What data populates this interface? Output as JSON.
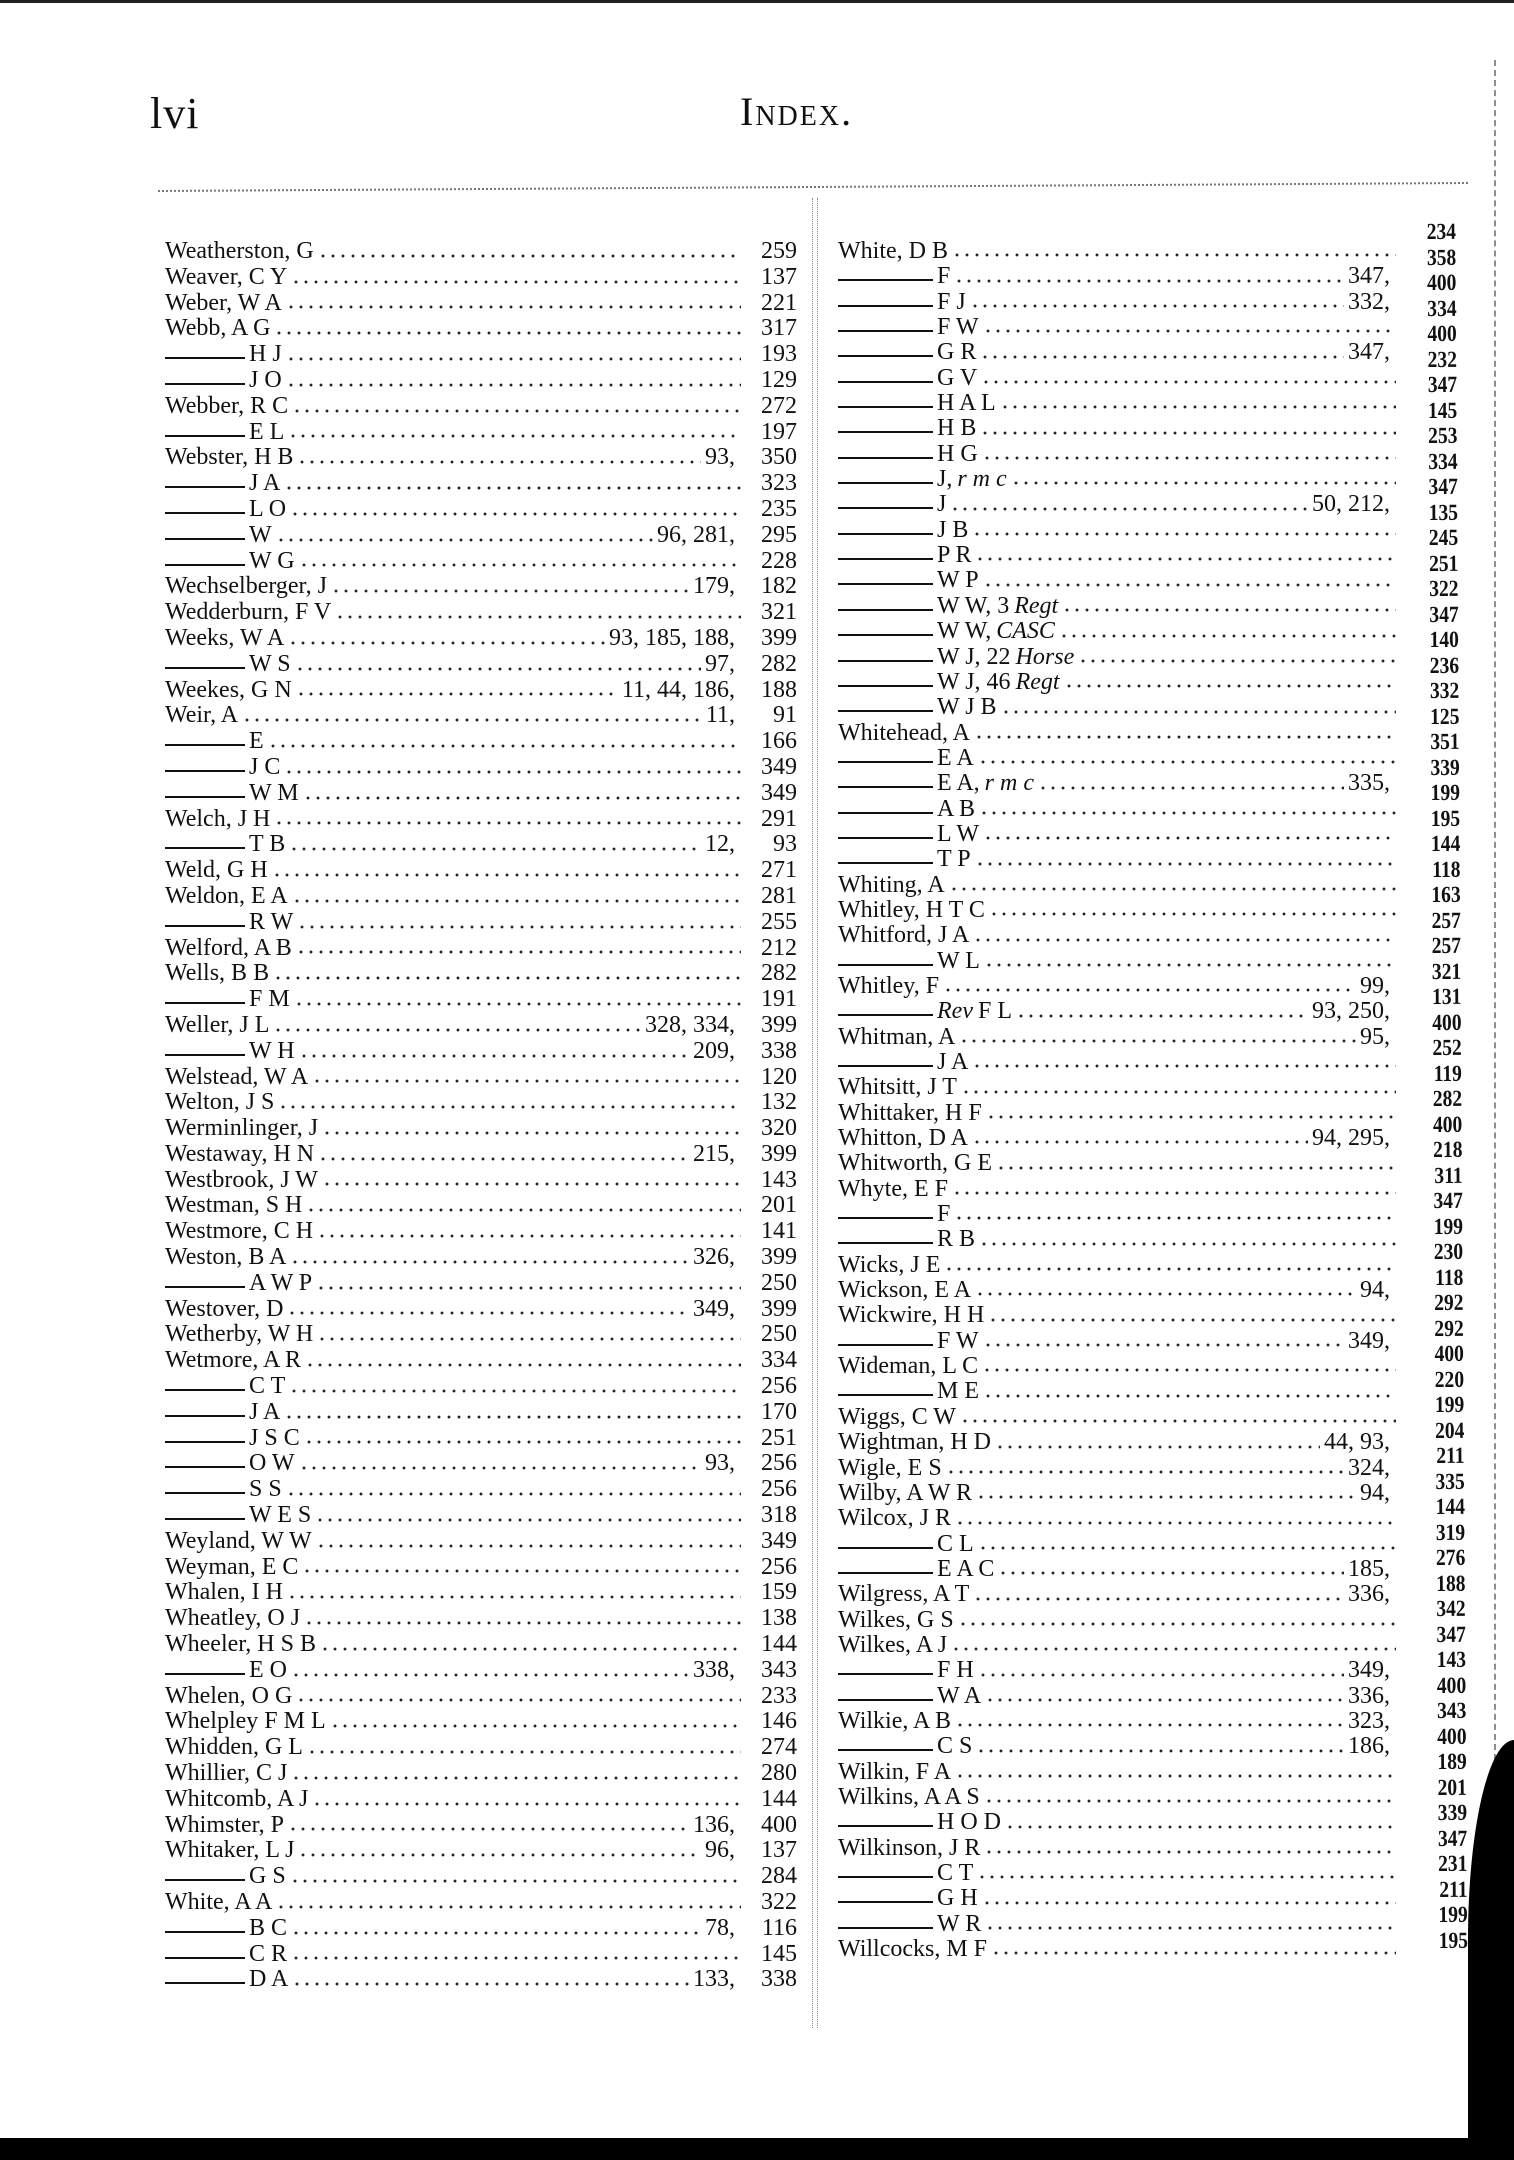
{
  "header": {
    "folio": "lvi",
    "title": "Index."
  },
  "left_column": [
    {
      "name": "Weatherston, G",
      "refs": "",
      "page": "259"
    },
    {
      "name": "Weaver, C Y",
      "refs": "",
      "page": "137"
    },
    {
      "name": "Weber, W A",
      "refs": "",
      "page": "221"
    },
    {
      "name": "Webb, A G",
      "refs": "",
      "page": "317"
    },
    {
      "sub": true,
      "name": "H J",
      "refs": "",
      "page": "193"
    },
    {
      "sub": true,
      "name": "J O",
      "refs": "",
      "page": "129"
    },
    {
      "name": "Webber, R C",
      "refs": "",
      "page": "272"
    },
    {
      "sub": true,
      "name": "E L",
      "refs": "",
      "page": "197"
    },
    {
      "name": "Webster, H B",
      "refs": "93,",
      "page": "350"
    },
    {
      "sub": true,
      "name": "J A",
      "refs": "",
      "page": "323"
    },
    {
      "sub": true,
      "name": "L O",
      "refs": "",
      "page": "235"
    },
    {
      "sub": true,
      "name": "W",
      "refs": "96, 281,",
      "page": "295"
    },
    {
      "sub": true,
      "name": "W G",
      "refs": "",
      "page": "228"
    },
    {
      "name": "Wechselberger, J",
      "refs": "179,",
      "page": "182"
    },
    {
      "name": "Wedderburn, F V",
      "refs": "",
      "page": "321"
    },
    {
      "name": "Weeks, W A",
      "refs": "93, 185, 188,",
      "page": "399"
    },
    {
      "sub": true,
      "name": "W S",
      "refs": "97,",
      "page": "282"
    },
    {
      "name": "Weekes, G N",
      "refs": "11, 44, 186,",
      "page": "188"
    },
    {
      "name": "Weir, A",
      "refs": "11,",
      "page": "91"
    },
    {
      "sub": true,
      "name": "E",
      "refs": "",
      "page": "166"
    },
    {
      "sub": true,
      "name": "J C",
      "refs": "",
      "page": "349"
    },
    {
      "sub": true,
      "name": "W M",
      "refs": "",
      "page": "349"
    },
    {
      "name": "Welch, J H",
      "refs": "",
      "page": "291"
    },
    {
      "sub": true,
      "name": "T B",
      "refs": "12,",
      "page": "93"
    },
    {
      "name": "Weld, G H",
      "refs": "",
      "page": "271"
    },
    {
      "name": "Weldon, E A",
      "refs": "",
      "page": "281"
    },
    {
      "sub": true,
      "name": "R W",
      "refs": "",
      "page": "255"
    },
    {
      "name": "Welford, A B",
      "refs": "",
      "page": "212"
    },
    {
      "name": "Wells, B B",
      "refs": "",
      "page": "282"
    },
    {
      "sub": true,
      "name": "F M",
      "refs": "",
      "page": "191"
    },
    {
      "name": "Weller, J L",
      "refs": "328, 334,",
      "page": "399"
    },
    {
      "sub": true,
      "name": "W H",
      "refs": "209,",
      "page": "338"
    },
    {
      "name": "Welstead, W A",
      "refs": "",
      "page": "120"
    },
    {
      "name": "Welton, J S",
      "refs": "",
      "page": "132"
    },
    {
      "name": "Werminlinger, J",
      "refs": "",
      "page": "320"
    },
    {
      "name": "Westaway, H N",
      "refs": "215,",
      "page": "399"
    },
    {
      "name": "Westbrook, J W",
      "refs": "",
      "page": "143"
    },
    {
      "name": "Westman, S H",
      "refs": "",
      "page": "201"
    },
    {
      "name": "Westmore, C H",
      "refs": "",
      "page": "141"
    },
    {
      "name": "Weston, B A",
      "refs": "326,",
      "page": "399"
    },
    {
      "sub": true,
      "name": "A W P",
      "refs": "",
      "page": "250"
    },
    {
      "name": "Westover, D",
      "refs": "349,",
      "page": "399"
    },
    {
      "name": "Wetherby, W H",
      "refs": "",
      "page": "250"
    },
    {
      "name": "Wetmore, A R",
      "refs": "",
      "page": "334"
    },
    {
      "sub": true,
      "name": "C T",
      "refs": "",
      "page": "256"
    },
    {
      "sub": true,
      "name": "J A",
      "refs": "",
      "page": "170"
    },
    {
      "sub": true,
      "name": "J S C",
      "refs": "",
      "page": "251"
    },
    {
      "sub": true,
      "name": "O W",
      "refs": "93,",
      "page": "256"
    },
    {
      "sub": true,
      "name": "S S",
      "refs": "",
      "page": "256"
    },
    {
      "sub": true,
      "name": "W E S",
      "refs": "",
      "page": "318"
    },
    {
      "name": "Weyland, W W",
      "refs": "",
      "page": "349"
    },
    {
      "name": "Weyman, E C",
      "refs": "",
      "page": "256"
    },
    {
      "name": "Whalen, I H",
      "refs": "",
      "page": "159"
    },
    {
      "name": "Wheatley, O J",
      "refs": "",
      "page": "138"
    },
    {
      "name": "Wheeler, H S B",
      "refs": "",
      "page": "144"
    },
    {
      "sub": true,
      "name": "E O",
      "refs": "338,",
      "page": "343"
    },
    {
      "name": "Whelen, O G",
      "refs": "",
      "page": "233"
    },
    {
      "name": "Whelpley F M L",
      "refs": "",
      "page": "146"
    },
    {
      "name": "Whidden, G L",
      "refs": "",
      "page": "274"
    },
    {
      "name": "Whillier, C J",
      "refs": "",
      "page": "280"
    },
    {
      "name": "Whitcomb, A J",
      "refs": "",
      "page": "144"
    },
    {
      "name": "Whimster, P",
      "refs": "136,",
      "page": "400"
    },
    {
      "name": "Whitaker, L J",
      "refs": "96,",
      "page": "137"
    },
    {
      "sub": true,
      "name": "G S",
      "refs": "",
      "page": "284"
    },
    {
      "name": "White, A A",
      "refs": "",
      "page": "322"
    },
    {
      "sub": true,
      "name": "B C",
      "refs": "78,",
      "page": "116"
    },
    {
      "sub": true,
      "name": "C R",
      "refs": "",
      "page": "145"
    },
    {
      "sub": true,
      "name": "D A",
      "refs": "133,",
      "page": "338"
    }
  ],
  "right_column": {
    "entries": [
      {
        "name": "White, D B",
        "refs": ""
      },
      {
        "sub": true,
        "name": "F",
        "refs": "347,"
      },
      {
        "sub": true,
        "name": "F J",
        "refs": "332,"
      },
      {
        "sub": true,
        "name": "F W",
        "refs": ""
      },
      {
        "sub": true,
        "name": "G R",
        "refs": "347,"
      },
      {
        "sub": true,
        "name": "G V",
        "refs": ""
      },
      {
        "sub": true,
        "name": "H A L",
        "refs": ""
      },
      {
        "sub": true,
        "name": "H B",
        "refs": ""
      },
      {
        "sub": true,
        "name": "H G",
        "refs": ""
      },
      {
        "sub": true,
        "name": "J,",
        "italic": "r m c",
        "refs": ""
      },
      {
        "sub": true,
        "name": "J",
        "refs": "50, 212,"
      },
      {
        "sub": true,
        "name": "J B",
        "refs": ""
      },
      {
        "sub": true,
        "name": "P R",
        "refs": ""
      },
      {
        "sub": true,
        "name": "W P",
        "refs": ""
      },
      {
        "sub": true,
        "name": "W W, 3",
        "italic": "Regt",
        "refs": ""
      },
      {
        "sub": true,
        "name": "W W,",
        "italic": "CASC",
        "refs": ""
      },
      {
        "sub": true,
        "name": "W J, 22",
        "italic": "Horse",
        "refs": ""
      },
      {
        "sub": true,
        "name": "W J, 46",
        "italic": "Regt",
        "refs": ""
      },
      {
        "sub": true,
        "name": "W J B",
        "refs": ""
      },
      {
        "name": "Whitehead, A",
        "refs": ""
      },
      {
        "sub": true,
        "name": "E A",
        "refs": ""
      },
      {
        "sub": true,
        "name": "E A,",
        "italic": "r m c",
        "refs": "335,"
      },
      {
        "sub": true,
        "name": "A B",
        "refs": ""
      },
      {
        "sub": true,
        "name": "L W",
        "refs": ""
      },
      {
        "sub": true,
        "name": "T P",
        "refs": ""
      },
      {
        "name": "Whiting, A",
        "refs": ""
      },
      {
        "name": "Whitley, H T C",
        "refs": ""
      },
      {
        "name": "Whitford, J A",
        "refs": ""
      },
      {
        "sub": true,
        "name": "W L",
        "refs": ""
      },
      {
        "name": "Whitley, F",
        "refs": "99,"
      },
      {
        "sub": true,
        "italic_prefix": "Rev",
        "name": "F L",
        "refs": "93, 250,"
      },
      {
        "name": "Whitman, A",
        "refs": "95,"
      },
      {
        "sub": true,
        "name": "J A",
        "refs": ""
      },
      {
        "name": "Whitsitt, J T",
        "refs": ""
      },
      {
        "name": "Whittaker, H F",
        "refs": ""
      },
      {
        "name": "Whitton, D A",
        "refs": "94, 295,"
      },
      {
        "name": "Whitworth, G E",
        "refs": ""
      },
      {
        "name": "Whyte, E F",
        "refs": ""
      },
      {
        "sub": true,
        "name": "F",
        "refs": ""
      },
      {
        "sub": true,
        "name": "R B",
        "refs": ""
      },
      {
        "name": "Wicks, J E",
        "refs": ""
      },
      {
        "name": "Wickson, E A",
        "refs": "94,"
      },
      {
        "name": "Wickwire, H H",
        "refs": ""
      },
      {
        "sub": true,
        "name": "F W",
        "refs": "349,"
      },
      {
        "name": "Wideman, L C",
        "refs": ""
      },
      {
        "sub": true,
        "name": "M E",
        "refs": ""
      },
      {
        "name": "Wiggs, C W",
        "refs": ""
      },
      {
        "name": "Wightman, H D",
        "refs": "44, 93,"
      },
      {
        "name": "Wigle, E S",
        "refs": "324,"
      },
      {
        "name": "Wilby, A W R",
        "refs": "94,"
      },
      {
        "name": "Wilcox, J R",
        "refs": ""
      },
      {
        "sub": true,
        "name": "C L",
        "refs": ""
      },
      {
        "sub": true,
        "name": "E A C",
        "refs": "185,"
      },
      {
        "name": "Wilgress, A T",
        "refs": "336,"
      },
      {
        "name": "Wilkes, G S",
        "refs": ""
      },
      {
        "name": "Wilkes, A J",
        "refs": ""
      },
      {
        "sub": true,
        "name": "F H",
        "refs": "349,"
      },
      {
        "sub": true,
        "name": "W A",
        "refs": "336,"
      },
      {
        "name": "Wilkie, A B",
        "refs": "323,"
      },
      {
        "sub": true,
        "name": "C S",
        "refs": "186,"
      },
      {
        "name": "Wilkin, F A",
        "refs": ""
      },
      {
        "name": "Wilkins, A A S",
        "refs": ""
      },
      {
        "sub": true,
        "name": "H O D",
        "refs": ""
      },
      {
        "name": "Wilkinson, J R",
        "refs": ""
      },
      {
        "sub": true,
        "name": "C T",
        "refs": ""
      },
      {
        "sub": true,
        "name": "G H",
        "refs": ""
      },
      {
        "sub": true,
        "name": "W R",
        "refs": ""
      },
      {
        "name": "Willcocks, M F",
        "refs": ""
      }
    ],
    "pages": [
      "234",
      "358",
      "400",
      "334",
      "400",
      "232",
      "347",
      "145",
      "253",
      "334",
      "347",
      "135",
      "245",
      "251",
      "322",
      "347",
      "140",
      "236",
      "332",
      "125",
      "351",
      "339",
      "199",
      "195",
      "144",
      "118",
      "163",
      "257",
      "257",
      "321",
      "131",
      "400",
      "252",
      "119",
      "282",
      "400",
      "218",
      "311",
      "347",
      "199",
      "230",
      "118",
      "292",
      "292",
      "400",
      "220",
      "199",
      "204",
      "211",
      "335",
      "144",
      "319",
      "276",
      "188",
      "342",
      "347",
      "143",
      "400",
      "343",
      "400",
      "189",
      "201",
      "339",
      "347",
      "231",
      "211",
      "199",
      "195"
    ]
  }
}
